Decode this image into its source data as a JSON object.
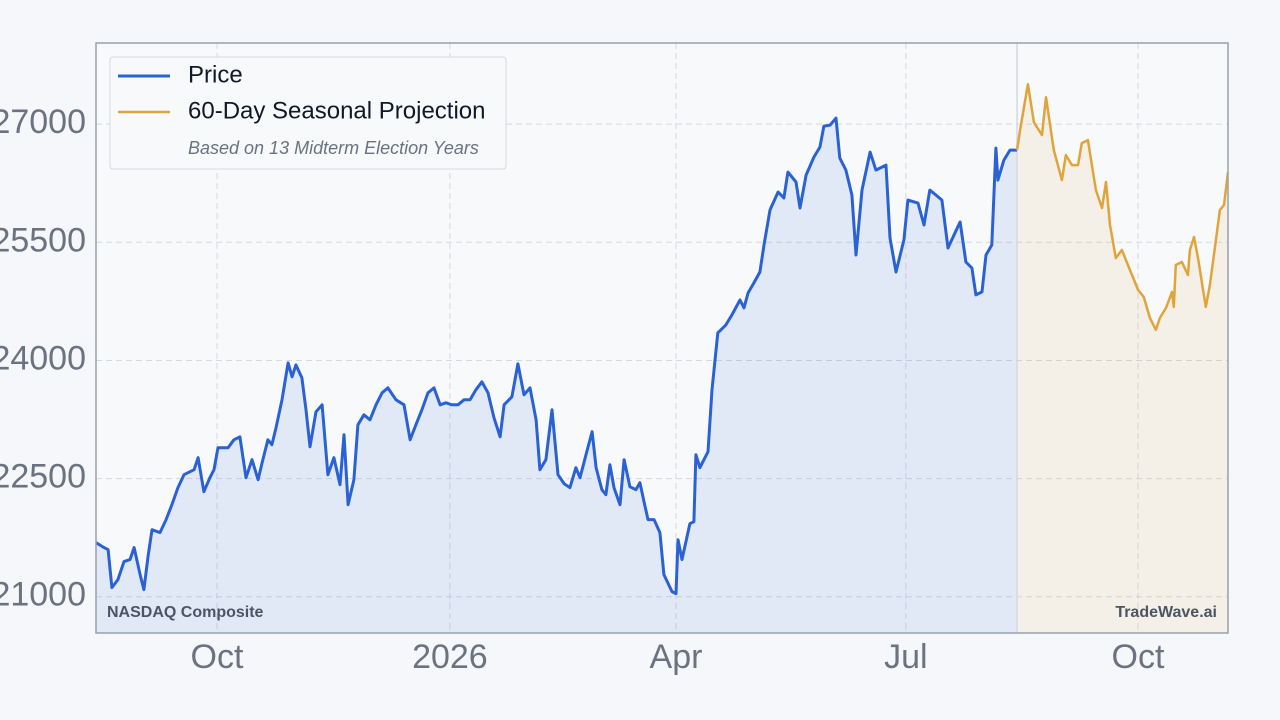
{
  "chart_data": {
    "type": "line",
    "title": "NASDAQ Composite",
    "source": "TradeWave.ai",
    "note": "Based on 13 Midterm Election Years",
    "xlim": [
      0,
      449.1
    ],
    "xticks": [
      {
        "value": 48.0,
        "label": "Oct"
      },
      {
        "value": 140.4,
        "label": "2026"
      },
      {
        "value": 230.1,
        "label": "Apr"
      },
      {
        "value": 321.3,
        "label": "Jul"
      },
      {
        "value": 413.4,
        "label": "Oct"
      }
    ],
    "ylim": [
      20540,
      28030
    ],
    "yticks": [
      21000,
      22500,
      24000,
      25500,
      27000
    ],
    "grid": true,
    "legend": "top-left",
    "series": [
      {
        "name": "Price",
        "color": "#2a62d6",
        "fill": "rgba(42,98,214,0.10)",
        "x": [
          0,
          3.2,
          4.8,
          6.3,
          8.7,
          11.1,
          13.5,
          15.1,
          17.5,
          19.0,
          20.6,
          22.2,
          25.4,
          27.8,
          30.1,
          32.5,
          34.9,
          36.5,
          38.9,
          40.5,
          42.8,
          45.2,
          46.8,
          48.4,
          52.4,
          54.7,
          57.1,
          59.5,
          61.9,
          64.3,
          65.9,
          68.2,
          69.8,
          71.4,
          73.8,
          76.2,
          77.8,
          79.3,
          81.7,
          83.3,
          84.9,
          87.3,
          89.7,
          92.0,
          94.4,
          96.8,
          98.4,
          100.0,
          102.3,
          103.9,
          106.3,
          108.7,
          111.1,
          113.5,
          115.8,
          119.0,
          122.2,
          124.6,
          126.9,
          129.3,
          131.7,
          134.1,
          136.5,
          138.8,
          141.2,
          143.6,
          146.0,
          148.4,
          150.7,
          153.1,
          155.5,
          157.9,
          160.3,
          161.9,
          165.0,
          167.4,
          169.8,
          172.2,
          174.6,
          176.1,
          178.5,
          180.9,
          183.3,
          185.7,
          188.0,
          190.4,
          192.0,
          194.4,
          196.8,
          198.4,
          200.7,
          202.3,
          203.9,
          205.5,
          207.9,
          209.5,
          211.8,
          214.2,
          215.8,
          217.4,
          219.0,
          221.4,
          223.7,
          225.3,
          228.5,
          230.1,
          230.9,
          232.5,
          235.6,
          237.2,
          238.0,
          239.6,
          242.8,
          244.4,
          246.7,
          249.9,
          252.3,
          255.5,
          257.1,
          258.7,
          261.0,
          263.4,
          265.0,
          267.4,
          270.6,
          272.9,
          274.5,
          277.7,
          279.3,
          281.7,
          284.8,
          287.2,
          288.8,
          291.2,
          293.6,
          295.1,
          297.5,
          299.9,
          301.5,
          303.9,
          307.1,
          309.4,
          313.4,
          315.0,
          317.4,
          320.5,
          322.1,
          326.1,
          328.5,
          330.8,
          333.2,
          335.6,
          338.0,
          340.4,
          342.8,
          345.1,
          347.5,
          349.1,
          351.5,
          353.1,
          355.4,
          357.0,
          357.8,
          360.2,
          362.6,
          365.4
        ],
        "values": [
          21687,
          21624,
          21598,
          21116,
          21218,
          21446,
          21472,
          21624,
          21281,
          21091,
          21497,
          21852,
          21814,
          21979,
          22169,
          22384,
          22549,
          22575,
          22613,
          22765,
          22334,
          22511,
          22613,
          22892,
          22892,
          22993,
          23031,
          22511,
          22740,
          22486,
          22701,
          22993,
          22930,
          23145,
          23500,
          23969,
          23792,
          23944,
          23779,
          23374,
          22904,
          23348,
          23437,
          22549,
          22765,
          22423,
          23057,
          22169,
          22486,
          23183,
          23310,
          23247,
          23437,
          23589,
          23652,
          23500,
          23437,
          22993,
          23183,
          23374,
          23589,
          23652,
          23437,
          23462,
          23437,
          23437,
          23500,
          23500,
          23627,
          23729,
          23589,
          23272,
          23031,
          23437,
          23538,
          23957,
          23564,
          23652,
          23247,
          22613,
          22740,
          23374,
          22549,
          22435,
          22384,
          22638,
          22511,
          22803,
          23095,
          22638,
          22359,
          22296,
          22676,
          22384,
          22169,
          22740,
          22397,
          22359,
          22448,
          22207,
          21979,
          21979,
          21814,
          21281,
          21066,
          21040,
          21725,
          21472,
          21928,
          21953,
          22803,
          22638,
          22841,
          23627,
          24350,
          24451,
          24578,
          24768,
          24667,
          24857,
          24984,
          25123,
          25466,
          25910,
          26138,
          26062,
          26391,
          26265,
          25935,
          26353,
          26582,
          26708,
          26975,
          26987,
          27076,
          26569,
          26417,
          26100,
          25339,
          26163,
          26645,
          26417,
          26480,
          25554,
          25123,
          25529,
          26036,
          25998,
          25719,
          26163,
          26100,
          26036,
          25428,
          25593,
          25757,
          25250,
          25174,
          24832,
          24870,
          25339,
          25466,
          26696,
          26290,
          26544,
          26670,
          26670
        ]
      },
      {
        "name": "60-Day Seasonal Projection",
        "color": "#e0a43a",
        "fill": "rgba(224,164,58,0.10)",
        "x": [
          365.4,
          366.6,
          369.7,
          372.1,
          375.3,
          376.9,
          380.0,
          383.2,
          384.8,
          387.2,
          389.6,
          391.1,
          393.5,
          396.7,
          399.1,
          400.7,
          402.3,
          404.6,
          407.0,
          409.4,
          411.8,
          413.4,
          415.7,
          418.1,
          420.5,
          422.1,
          424.5,
          426.9,
          427.6,
          428.4,
          430.8,
          433.2,
          434.0,
          435.6,
          437.2,
          440.3,
          441.9,
          443.5,
          445.9,
          447.5,
          449.1
        ],
        "values": [
          26670,
          26924,
          27507,
          27025,
          26861,
          27342,
          26670,
          26290,
          26607,
          26480,
          26480,
          26759,
          26797,
          26163,
          25935,
          26265,
          25719,
          25301,
          25402,
          25212,
          25022,
          24895,
          24806,
          24540,
          24388,
          24540,
          24667,
          24870,
          24680,
          25212,
          25250,
          25085,
          25402,
          25567,
          25301,
          24680,
          24959,
          25339,
          25910,
          25973,
          26391
        ]
      }
    ]
  }
}
